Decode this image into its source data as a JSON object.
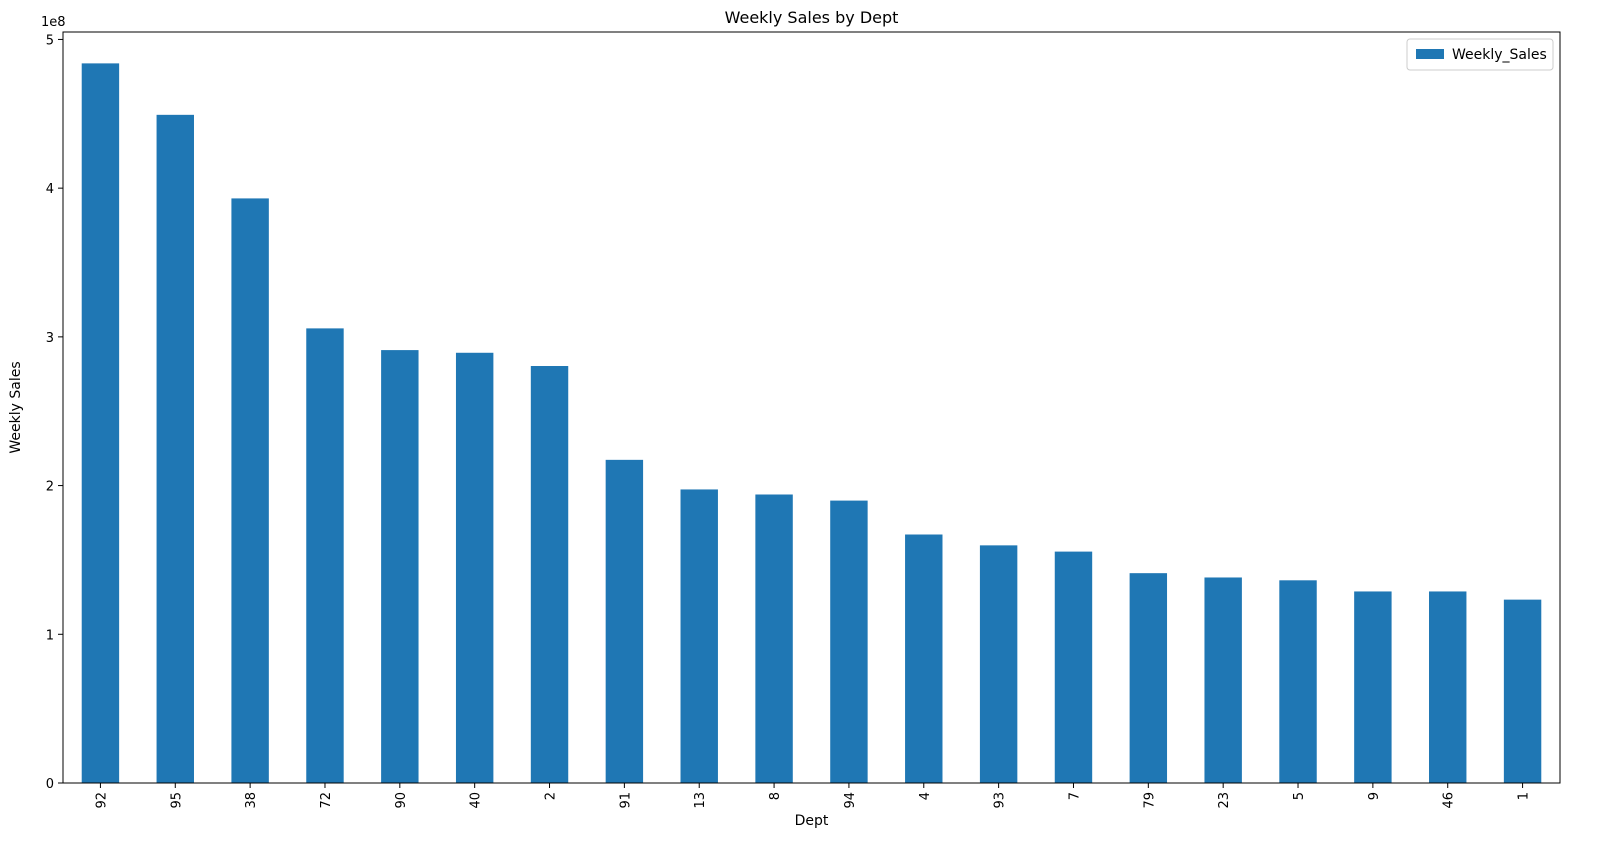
{
  "chart_data": {
    "type": "bar",
    "title": "Weekly Sales by Dept",
    "xlabel": "Dept",
    "ylabel": "Weekly Sales",
    "y_multiplier_label": "1e8",
    "categories": [
      "92",
      "95",
      "38",
      "72",
      "90",
      "40",
      "2",
      "91",
      "13",
      "8",
      "94",
      "4",
      "93",
      "7",
      "79",
      "23",
      "5",
      "9",
      "46",
      "1"
    ],
    "series": [
      {
        "name": "Weekly_Sales",
        "color": "#1f77b4",
        "values": [
          483900000,
          449300000,
          393100000,
          305700000,
          291100000,
          289300000,
          280400000,
          217300000,
          197400000,
          194000000,
          189900000,
          167100000,
          159800000,
          155600000,
          141100000,
          138200000,
          136300000,
          128800000,
          128800000,
          123300000
        ]
      }
    ],
    "ylim": [
      0,
      505000000
    ],
    "yticks": [
      0,
      100000000,
      200000000,
      300000000,
      400000000,
      500000000
    ],
    "ytick_labels": [
      "0",
      "1",
      "2",
      "3",
      "4",
      "5"
    ],
    "grid": false,
    "legend_position": "top-right"
  }
}
